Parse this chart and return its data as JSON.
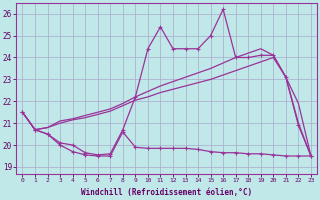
{
  "xlabel": "Windchill (Refroidissement éolien,°C)",
  "background_color": "#c0e8e8",
  "line_color": "#993399",
  "grid_color": "#aaaacc",
  "x_ticks": [
    0,
    1,
    2,
    3,
    4,
    5,
    6,
    7,
    8,
    9,
    10,
    11,
    12,
    13,
    14,
    15,
    16,
    17,
    18,
    19,
    20,
    21,
    22,
    23
  ],
  "ylim": [
    18.7,
    26.5
  ],
  "xlim": [
    -0.5,
    23.5
  ],
  "yticks": [
    19,
    20,
    21,
    22,
    23,
    24,
    25,
    26
  ],
  "series1": [
    21.5,
    20.7,
    20.5,
    20.0,
    19.7,
    19.55,
    19.5,
    19.5,
    20.6,
    19.9,
    19.85,
    19.85,
    19.85,
    19.85,
    19.8,
    19.7,
    19.65,
    19.65,
    19.6,
    19.6,
    19.55,
    19.5,
    19.5,
    19.5
  ],
  "series2": [
    21.5,
    20.7,
    20.5,
    20.1,
    20.0,
    19.65,
    19.55,
    19.6,
    20.7,
    22.2,
    24.4,
    25.4,
    24.4,
    24.4,
    24.4,
    25.0,
    26.2,
    24.0,
    24.0,
    24.1,
    24.1,
    23.1,
    20.9,
    19.5
  ],
  "series3": [
    21.5,
    20.7,
    20.8,
    21.0,
    21.15,
    21.25,
    21.4,
    21.55,
    21.8,
    22.05,
    22.2,
    22.4,
    22.55,
    22.7,
    22.85,
    23.0,
    23.2,
    23.4,
    23.6,
    23.8,
    24.0,
    23.1,
    21.9,
    19.5
  ],
  "series4": [
    21.5,
    20.7,
    20.8,
    21.1,
    21.2,
    21.35,
    21.5,
    21.65,
    21.9,
    22.2,
    22.45,
    22.7,
    22.9,
    23.1,
    23.3,
    23.5,
    23.75,
    24.0,
    24.2,
    24.4,
    24.1,
    23.1,
    21.0,
    19.5
  ]
}
